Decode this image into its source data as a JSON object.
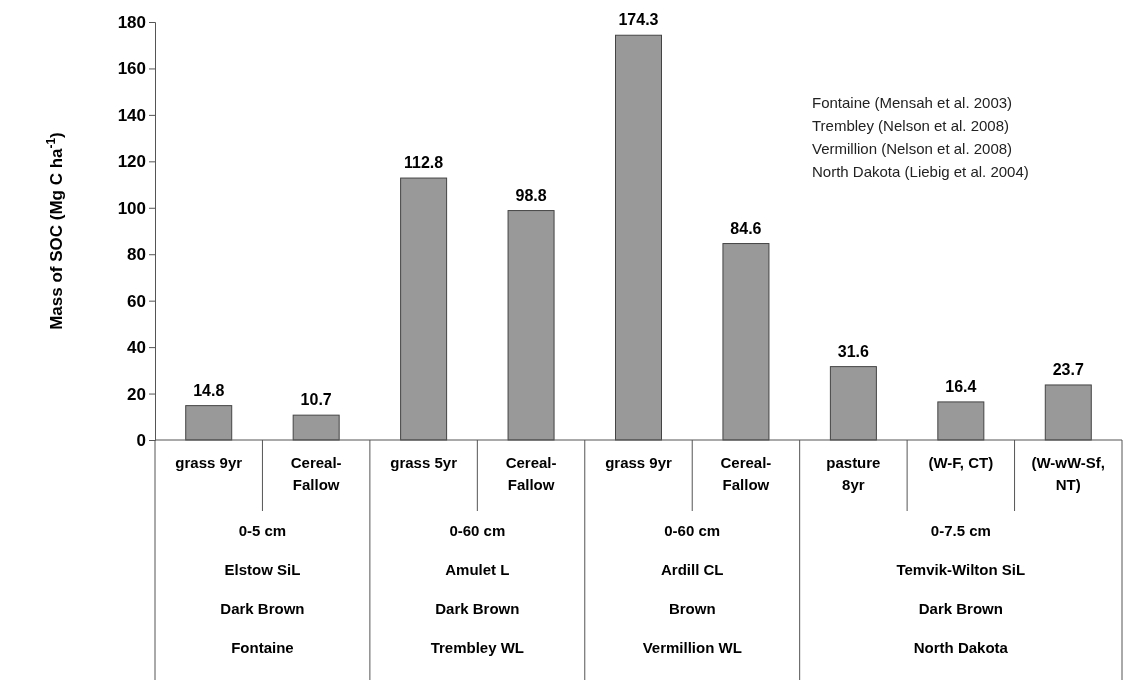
{
  "chart_data": {
    "type": "bar",
    "ylabel": "Mass of SOC (Mg C ha$^{-1}$)",
    "categories": [
      "grass 9yr",
      "Cereal-Fallow",
      "grass 5yr",
      "Cereal-Fallow",
      "grass 9yr",
      "Cereal-Fallow",
      "pasture 8yr",
      "(W-F, CT)",
      "(W-wW-Sf, NT)"
    ],
    "values": [
      14.8,
      10.7,
      112.8,
      98.8,
      174.3,
      84.6,
      31.6,
      16.4,
      23.7
    ],
    "color": "#999999",
    "data_labels": true,
    "ylim": [
      0,
      180
    ],
    "yticks": [
      0,
      20,
      40,
      60,
      80,
      100,
      120,
      140,
      160,
      180
    ],
    "annotations": [
      "Fontaine (Mensah et al. 2003)",
      "Trembley (Nelson et al. 2008)",
      "Vermillion (Nelson et al. 2008)",
      "North Dakota (Liebig et al. 2004)",
      "0-5 cm",
      "Elstow SiL",
      "Dark Brown",
      "Fontaine",
      "0-60 cm",
      "Amulet L",
      "Dark Brown",
      "Trembley WL",
      "0-60 cm",
      "Ardill CL",
      "Brown",
      "Vermillion WL",
      "0-7.5 cm",
      "Temvik-Wilton SiL",
      "Dark Brown",
      "North Dakota"
    ]
  }
}
